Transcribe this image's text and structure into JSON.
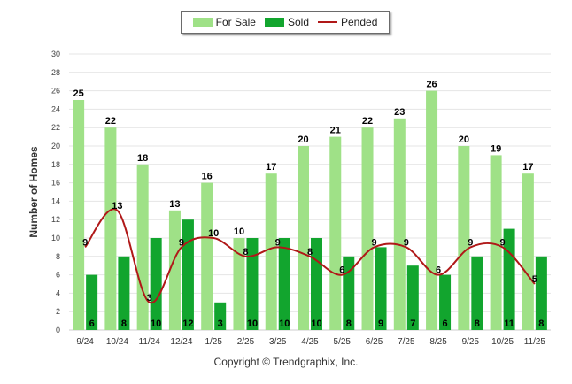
{
  "legend": {
    "for_sale_label": "For Sale",
    "sold_label": "Sold",
    "pended_label": "Pended"
  },
  "copyright": "Copyright © Trendgraphix, Inc.",
  "colors": {
    "for_sale": "#9fe187",
    "sold": "#12a52e",
    "pended": "#b01818",
    "grid": "#e4e4e4"
  },
  "chart_data": {
    "type": "bar",
    "categories": [
      "9/24",
      "10/24",
      "11/24",
      "12/24",
      "1/25",
      "2/25",
      "3/25",
      "4/25",
      "5/25",
      "6/25",
      "7/25",
      "8/25",
      "9/25",
      "10/25",
      "11/25"
    ],
    "series": [
      {
        "name": "For Sale",
        "type": "bar",
        "values": [
          25,
          22,
          18,
          13,
          16,
          10,
          17,
          20,
          21,
          22,
          23,
          26,
          20,
          19,
          17
        ]
      },
      {
        "name": "Sold",
        "type": "bar",
        "values": [
          6,
          8,
          10,
          12,
          3,
          10,
          10,
          10,
          8,
          9,
          7,
          6,
          8,
          11,
          8
        ]
      },
      {
        "name": "Pended",
        "type": "line",
        "values": [
          9,
          13,
          3,
          9,
          10,
          8,
          9,
          8,
          6,
          9,
          9,
          6,
          9,
          9,
          5
        ]
      }
    ],
    "ylabel": "Number of Homes",
    "ylim": [
      0,
      30
    ],
    "yticks": [
      0,
      2,
      4,
      6,
      8,
      10,
      12,
      14,
      16,
      18,
      20,
      22,
      24,
      26,
      28,
      30
    ],
    "grid": true,
    "legend_position": "top"
  }
}
